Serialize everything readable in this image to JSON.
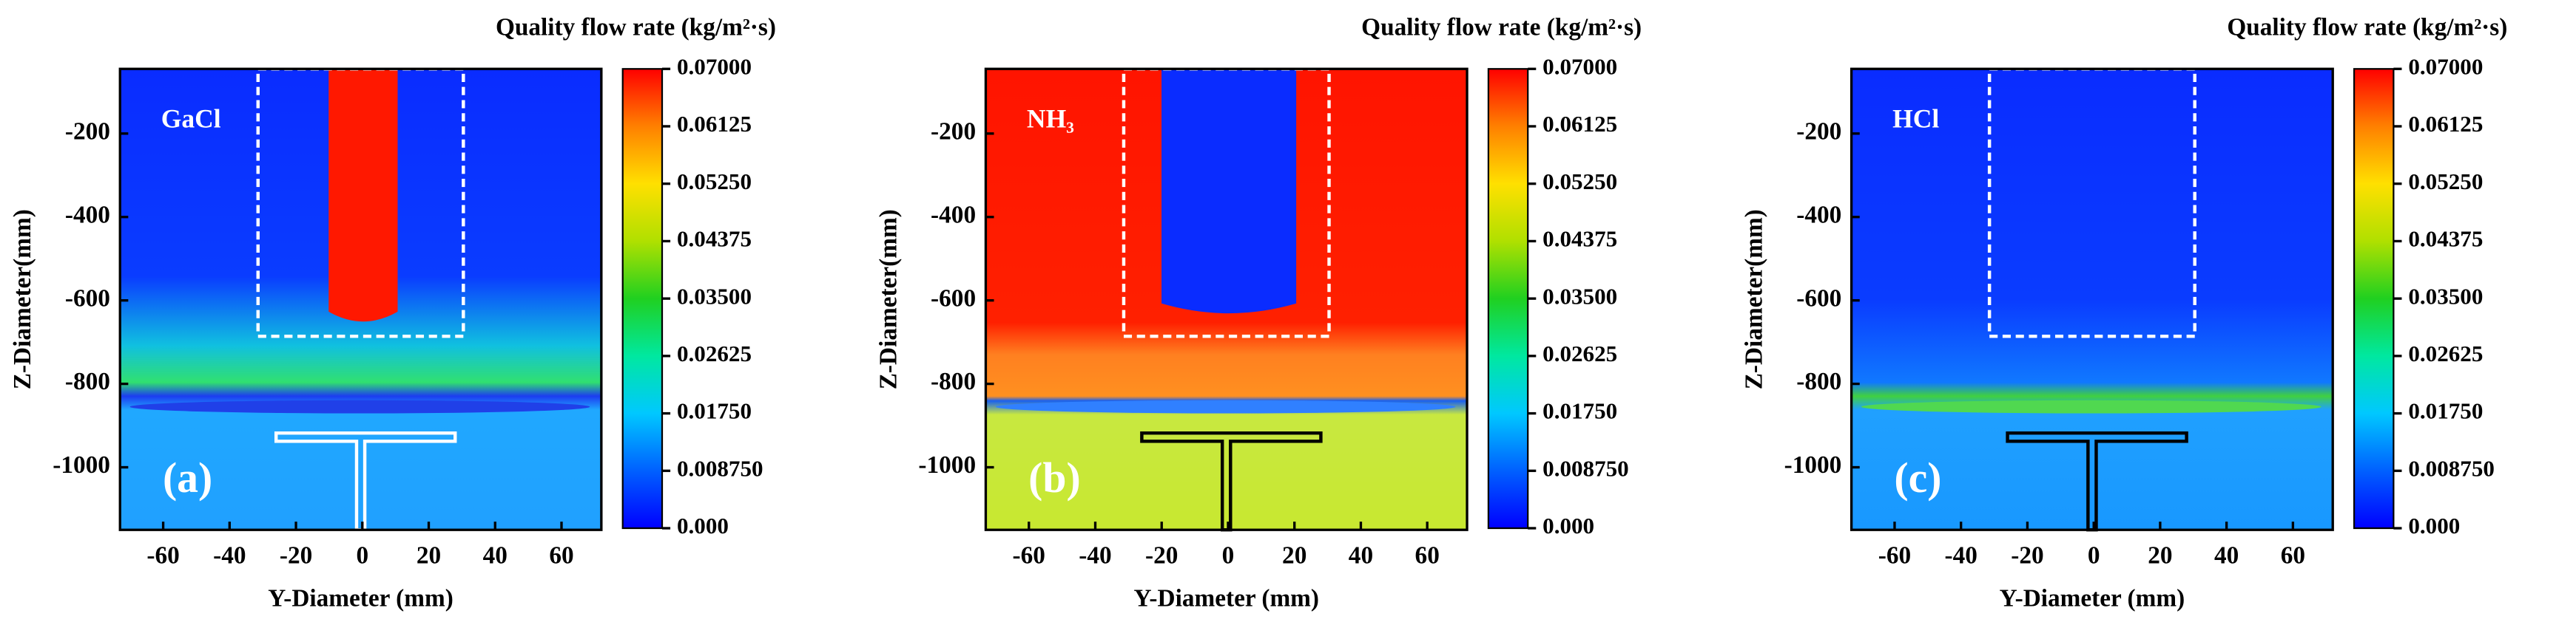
{
  "chart_data": [
    {
      "type": "heatmap",
      "panel_label": "(a)",
      "species": "GaCl",
      "field": "GaCl",
      "xlabel": "Y-Diameter (mm)",
      "ylabel": "Z-Diameter(mm)",
      "xlim": [
        -73,
        72
      ],
      "xticks": [
        -60,
        -40,
        -20,
        0,
        20,
        40,
        60
      ],
      "ylim": [
        -1150,
        -45
      ],
      "yticks": [
        -200,
        -400,
        -600,
        -800,
        -1000
      ],
      "colorbar": {
        "title": "Quality flow rate  (kg/m²·s)",
        "lim": [
          0,
          0.07
        ],
        "colors": [
          "#0000ff",
          "#0060ff",
          "#00c8ff",
          "#00e8a0",
          "#20d020",
          "#b0e000",
          "#ffe000",
          "#ff8000",
          "#ff0000"
        ],
        "ticks": [
          {
            "value": 0.07,
            "label": "0.07000"
          },
          {
            "value": 0.06125,
            "label": "0.06125"
          },
          {
            "value": 0.0525,
            "label": "0.05250"
          },
          {
            "value": 0.04375,
            "label": "0.04375"
          },
          {
            "value": 0.035,
            "label": "0.03500"
          },
          {
            "value": 0.02625,
            "label": "0.02625"
          },
          {
            "value": 0.0175,
            "label": "0.01750"
          },
          {
            "value": 0.00875,
            "label": "0.008750"
          },
          {
            "value": 0,
            "label": "0.000"
          }
        ]
      }
    },
    {
      "type": "heatmap",
      "panel_label": "(b)",
      "species": "NH₃",
      "field": "NH3",
      "xlabel": "Y-Diameter (mm)",
      "ylabel": "Z-Diameter(mm)",
      "xlim": [
        -73,
        72
      ],
      "xticks": [
        -60,
        -40,
        -20,
        0,
        20,
        40,
        60
      ],
      "ylim": [
        -1150,
        -45
      ],
      "yticks": [
        -200,
        -400,
        -600,
        -800,
        -1000
      ],
      "colorbar": {
        "title": "Quality flow rate  (kg/m²·s)",
        "lim": [
          0,
          0.07
        ],
        "colors": [
          "#0000ff",
          "#0060ff",
          "#00c8ff",
          "#00e8a0",
          "#20d020",
          "#b0e000",
          "#ffe000",
          "#ff8000",
          "#ff0000"
        ],
        "ticks": [
          {
            "value": 0.07,
            "label": "0.07000"
          },
          {
            "value": 0.06125,
            "label": "0.06125"
          },
          {
            "value": 0.0525,
            "label": "0.05250"
          },
          {
            "value": 0.04375,
            "label": "0.04375"
          },
          {
            "value": 0.035,
            "label": "0.03500"
          },
          {
            "value": 0.02625,
            "label": "0.02625"
          },
          {
            "value": 0.0175,
            "label": "0.01750"
          },
          {
            "value": 0.00875,
            "label": "0.008750"
          },
          {
            "value": 0,
            "label": "0.000"
          }
        ]
      }
    },
    {
      "type": "heatmap",
      "panel_label": "(c)",
      "species": "HCl",
      "field": "HCl",
      "xlabel": "Y-Diameter (mm)",
      "ylabel": "Z-Diameter(mm)",
      "xlim": [
        -73,
        72
      ],
      "xticks": [
        -60,
        -40,
        -20,
        0,
        20,
        40,
        60
      ],
      "ylim": [
        -1150,
        -45
      ],
      "yticks": [
        -200,
        -400,
        -600,
        -800,
        -1000
      ],
      "colorbar": {
        "title": "Quality flow rate  (kg/m²·s)",
        "lim": [
          0,
          0.07
        ],
        "colors": [
          "#0000ff",
          "#0060ff",
          "#00c8ff",
          "#00e8a0",
          "#20d020",
          "#b0e000",
          "#ffe000",
          "#ff8000",
          "#ff0000"
        ],
        "ticks": [
          {
            "value": 0.07,
            "label": "0.07000"
          },
          {
            "value": 0.06125,
            "label": "0.06125"
          },
          {
            "value": 0.0525,
            "label": "0.05250"
          },
          {
            "value": 0.04375,
            "label": "0.04375"
          },
          {
            "value": 0.035,
            "label": "0.03500"
          },
          {
            "value": 0.02625,
            "label": "0.02625"
          },
          {
            "value": 0.0175,
            "label": "0.01750"
          },
          {
            "value": 0.00875,
            "label": "0.008750"
          },
          {
            "value": 0,
            "label": "0.000"
          }
        ]
      }
    }
  ]
}
